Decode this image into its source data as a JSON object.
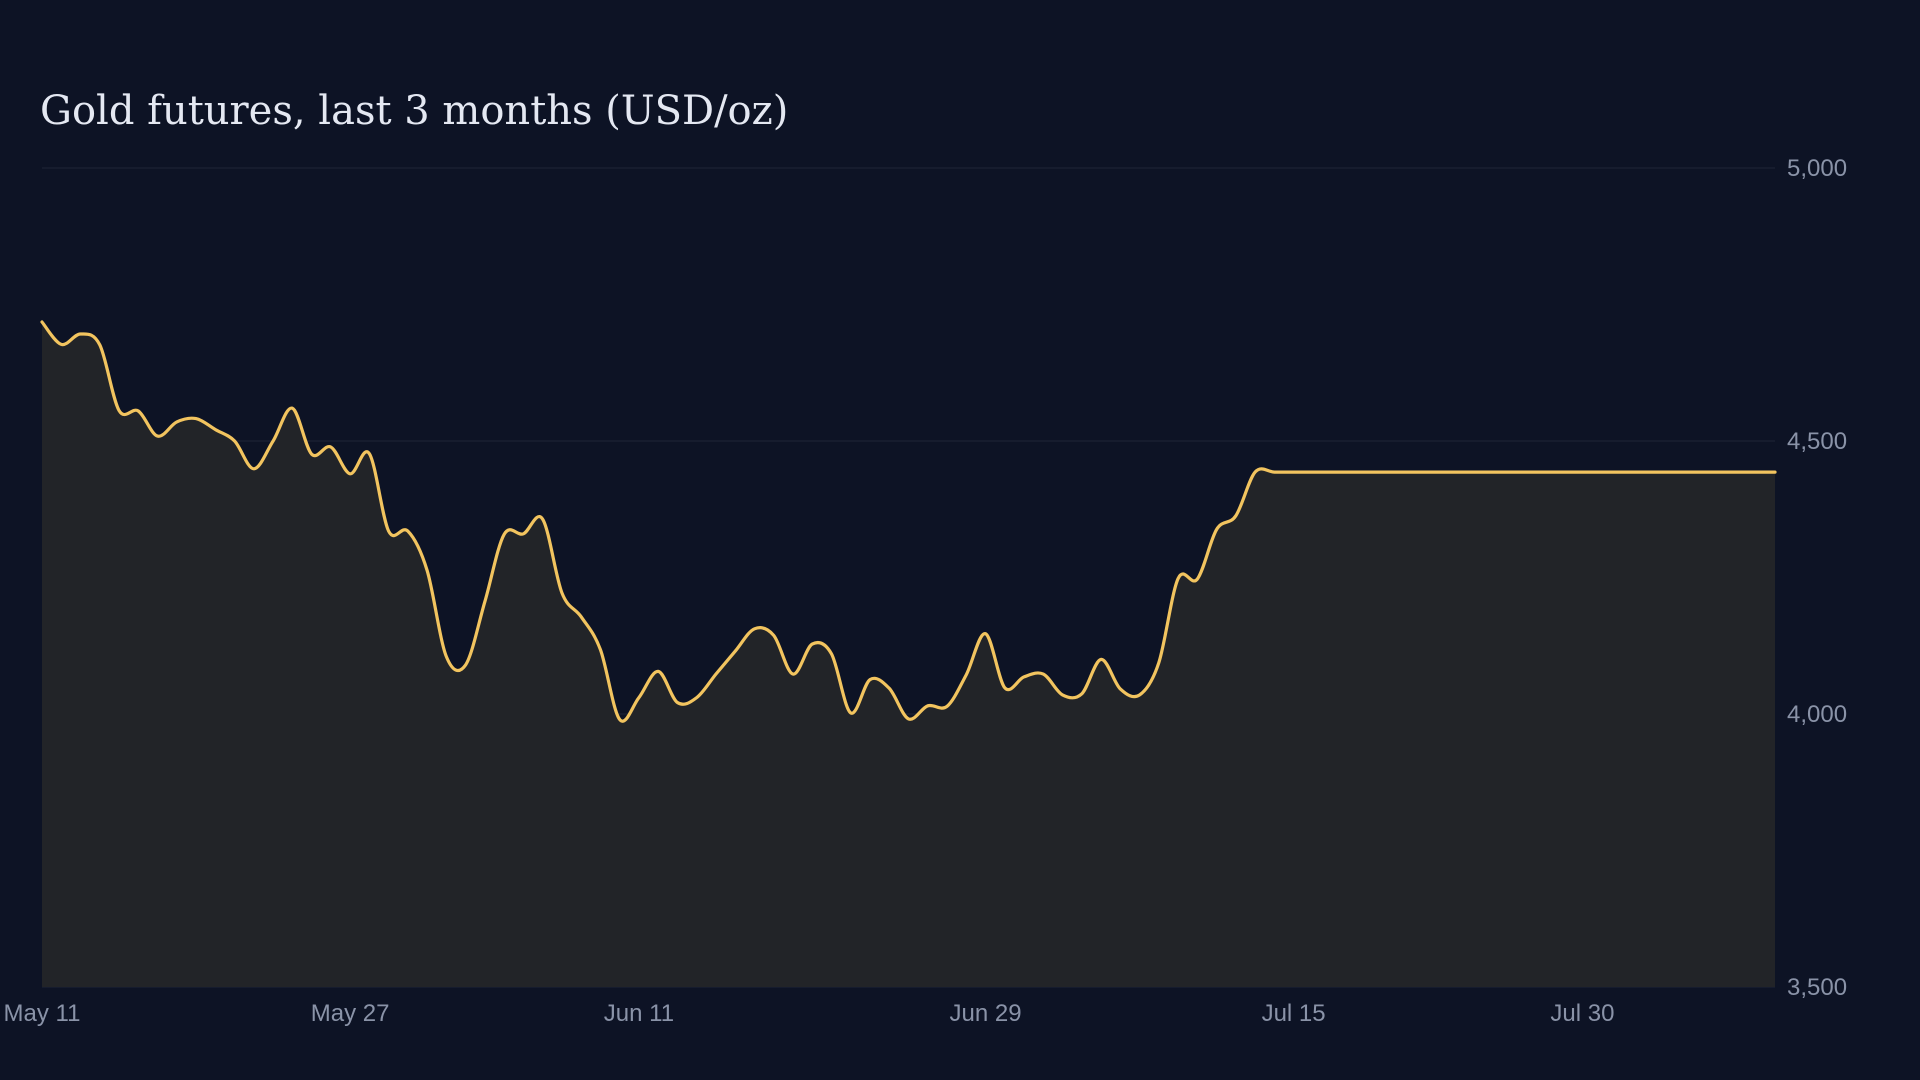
{
  "chart_data": {
    "type": "area",
    "title": "Gold futures, last 3 months (USD/oz)",
    "xlabel": "",
    "ylabel": "",
    "x_range": [
      "2025-05-11",
      "2025-08-09"
    ],
    "x_ticks": [
      {
        "label": "May 11",
        "date": "2025-05-11"
      },
      {
        "label": "May 27",
        "date": "2025-05-27"
      },
      {
        "label": "Jun 11",
        "date": "2025-06-11"
      },
      {
        "label": "Jun 29",
        "date": "2025-06-29"
      },
      {
        "label": "Jul 15",
        "date": "2025-07-15"
      },
      {
        "label": "Jul 30",
        "date": "2025-07-30"
      }
    ],
    "ylim": [
      3500,
      5000
    ],
    "y_ticks": [
      {
        "label": "5,000",
        "value": 5000
      },
      {
        "label": "4,500",
        "value": 4500
      },
      {
        "label": "4,000",
        "value": 4000
      },
      {
        "label": "3,500",
        "value": 3500
      }
    ],
    "y_axis_side": "right",
    "grid": "horizontal",
    "line_color": "#f2c45f",
    "fill_color": "#222428",
    "background": "#0d1325",
    "series": [
      {
        "x": [
          "2025-05-11",
          "2025-05-12",
          "2025-05-13",
          "2025-05-14",
          "2025-05-15",
          "2025-05-16",
          "2025-05-17",
          "2025-05-18",
          "2025-05-19",
          "2025-05-20",
          "2025-05-21",
          "2025-05-22",
          "2025-05-23",
          "2025-05-24",
          "2025-05-25",
          "2025-05-26",
          "2025-05-27",
          "2025-05-28",
          "2025-05-29",
          "2025-05-30",
          "2025-05-31",
          "2025-06-01",
          "2025-06-02",
          "2025-06-03",
          "2025-06-04",
          "2025-06-05",
          "2025-06-06",
          "2025-06-07",
          "2025-06-08",
          "2025-06-09",
          "2025-06-10",
          "2025-06-11",
          "2025-06-12",
          "2025-06-13",
          "2025-06-14",
          "2025-06-15",
          "2025-06-16",
          "2025-06-17",
          "2025-06-18",
          "2025-06-19",
          "2025-06-20",
          "2025-06-21",
          "2025-06-22",
          "2025-06-23",
          "2025-06-24",
          "2025-06-25",
          "2025-06-26",
          "2025-06-27",
          "2025-06-28",
          "2025-06-29",
          "2025-06-30",
          "2025-07-01",
          "2025-07-02",
          "2025-07-03",
          "2025-07-04",
          "2025-07-05",
          "2025-07-06",
          "2025-07-07",
          "2025-07-08",
          "2025-07-09",
          "2025-07-10",
          "2025-07-11",
          "2025-07-12",
          "2025-07-13",
          "2025-07-14",
          "2025-07-15",
          "2025-07-16",
          "2025-07-17",
          "2025-07-18",
          "2025-07-19",
          "2025-07-20",
          "2025-07-21",
          "2025-07-22",
          "2025-07-23",
          "2025-07-24",
          "2025-07-25",
          "2025-07-26",
          "2025-07-27",
          "2025-07-28",
          "2025-07-29",
          "2025-07-30",
          "2025-07-31",
          "2025-08-01",
          "2025-08-02",
          "2025-08-03",
          "2025-08-04",
          "2025-08-05",
          "2025-08-06",
          "2025-08-07",
          "2025-08-08",
          "2025-08-09",
          "2025-08-10"
        ],
        "y": [
          4718,
          4677,
          4696,
          4676,
          4556,
          4555,
          4509,
          4535,
          4541,
          4521,
          4500,
          4449,
          4500,
          4560,
          4476,
          4489,
          4440,
          4477,
          4335,
          4335,
          4263,
          4105,
          4090,
          4206,
          4329,
          4330,
          4357,
          4222,
          4178,
          4118,
          3990,
          4030,
          4078,
          4021,
          4030,
          4073,
          4115,
          4156,
          4144,
          4073,
          4128,
          4110,
          4002,
          4063,
          4047,
          3991,
          4015,
          4014,
          4072,
          4147,
          4048,
          4068,
          4073,
          4035,
          4037,
          4100,
          4046,
          4035,
          4094,
          4248,
          4247,
          4338,
          4363,
          4443,
          4443,
          4443,
          4443,
          4443,
          4443,
          4443,
          4443,
          4443,
          4443,
          4443,
          4443,
          4443,
          4443,
          4443,
          4443,
          4443,
          4443,
          4443,
          4443,
          4443,
          4443,
          4443,
          4443,
          4443,
          4443,
          4443,
          4443,
          4443
        ]
      }
    ]
  }
}
